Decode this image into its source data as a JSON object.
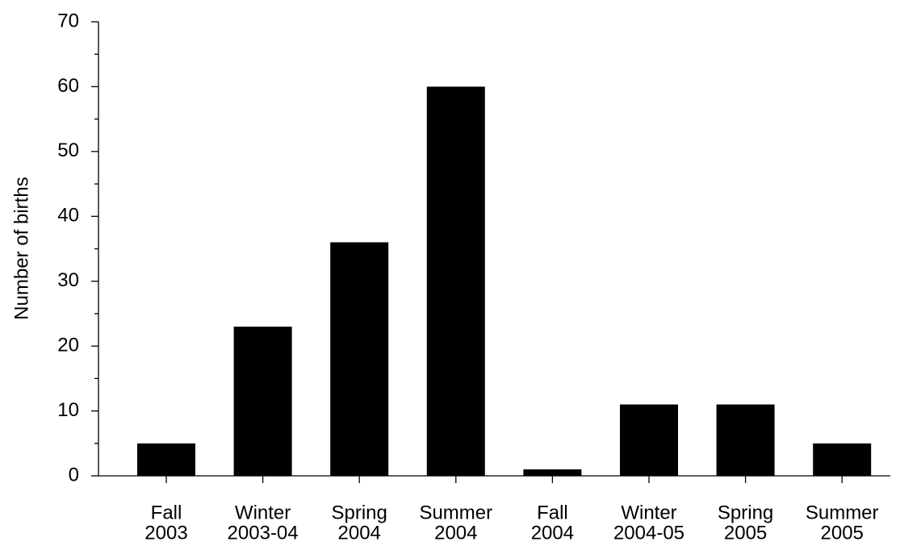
{
  "chart_data": {
    "type": "bar",
    "y_label": "Number of births",
    "categories": [
      [
        "Fall",
        "2003"
      ],
      [
        "Winter",
        "2003-04"
      ],
      [
        "Spring",
        "2004"
      ],
      [
        "Summer",
        "2004"
      ],
      [
        "Fall",
        "2004"
      ],
      [
        "Winter",
        "2004-05"
      ],
      [
        "Spring",
        "2005"
      ],
      [
        "Summer",
        "2005"
      ]
    ],
    "values": [
      5,
      23,
      36,
      60,
      1,
      11,
      11,
      5
    ],
    "color": "#000000",
    "ylim": [
      0,
      70
    ],
    "yticks": [
      0,
      10,
      20,
      30,
      40,
      50,
      60,
      70
    ],
    "yticks_minor": [
      5,
      15,
      25,
      35,
      45,
      55,
      65
    ],
    "grid": false
  }
}
